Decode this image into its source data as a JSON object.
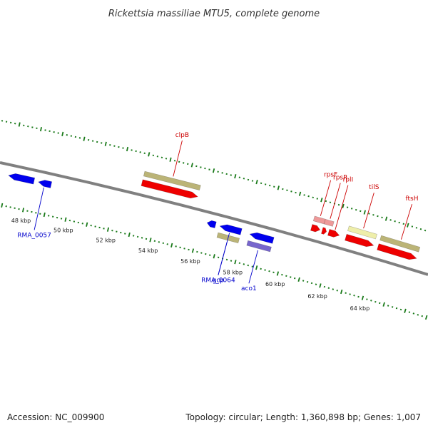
{
  "title": "Rickettsia massiliae MTU5, complete genome",
  "footer": {
    "accession": "Accession: NC_009900",
    "summary": "Topology: circular; Length: 1,360,898 bp; Genes: 1,007"
  },
  "colors": {
    "backbone": "#808080",
    "tick": "#1a7a1a",
    "forward_label": "#cc0000",
    "reverse_label": "#0000cc",
    "gene_red": "#ee0000",
    "gene_blue": "#0000ee",
    "gene_olive": "#bbb477",
    "gene_pink": "#ee9999",
    "gene_yellow": "#eeeeaa",
    "gene_purple": "#7766cc"
  },
  "scale": {
    "kbp_labels": [
      "48 kbp",
      "50 kbp",
      "52 kbp",
      "54 kbp",
      "56 kbp",
      "58 kbp",
      "60 kbp",
      "62 kbp",
      "64 kbp"
    ]
  },
  "genes": [
    {
      "name": "rma-0056",
      "strand": "reverse",
      "start_kbp": 47.0,
      "end_kbp": 48.2,
      "color": "gene_blue",
      "label": ""
    },
    {
      "name": "rma-0057",
      "strand": "reverse",
      "start_kbp": 48.4,
      "end_kbp": 49.0,
      "color": "gene_blue",
      "label": "RMA_0057"
    },
    {
      "name": "clpb-gene",
      "strand": "forward",
      "start_kbp": 53.0,
      "end_kbp": 55.6,
      "color": "gene_olive",
      "label": "clpB",
      "lane": "outer"
    },
    {
      "name": "forward-gene-1",
      "strand": "forward",
      "start_kbp": 53.0,
      "end_kbp": 55.6,
      "color": "gene_red",
      "label": ""
    },
    {
      "name": "rma-0063",
      "strand": "reverse",
      "start_kbp": 56.3,
      "end_kbp": 56.7,
      "color": "gene_blue",
      "label": ""
    },
    {
      "name": "rma-0064",
      "strand": "reverse",
      "start_kbp": 56.9,
      "end_kbp": 57.9,
      "color": "gene_blue",
      "label": "RMA_0064"
    },
    {
      "name": "gcp-gene",
      "strand": "reverse",
      "start_kbp": 56.9,
      "end_kbp": 57.9,
      "color": "gene_olive",
      "label": "gcp",
      "lane": "inner"
    },
    {
      "name": "rma-0066",
      "strand": "reverse",
      "start_kbp": 58.3,
      "end_kbp": 59.4,
      "color": "gene_blue",
      "label": ""
    },
    {
      "name": "aco1-gene",
      "strand": "reverse",
      "start_kbp": 58.3,
      "end_kbp": 59.4,
      "color": "gene_purple",
      "label": "aco1",
      "lane": "inner"
    },
    {
      "name": "rpsf-gene",
      "strand": "forward",
      "start_kbp": 60.9,
      "end_kbp": 61.4,
      "color": "gene_pink",
      "label": "rpsF",
      "lane": "outer"
    },
    {
      "name": "rpsr-gene",
      "strand": "forward",
      "start_kbp": 61.4,
      "end_kbp": 61.8,
      "color": "gene_pink",
      "label": "rpsR",
      "lane": "outer"
    },
    {
      "name": "forward-gene-2",
      "strand": "forward",
      "start_kbp": 60.9,
      "end_kbp": 61.3,
      "color": "gene_red",
      "label": ""
    },
    {
      "name": "forward-gene-3",
      "strand": "forward",
      "start_kbp": 61.4,
      "end_kbp": 61.6,
      "color": "gene_red",
      "label": ""
    },
    {
      "name": "rpli-gene",
      "strand": "forward",
      "start_kbp": 61.7,
      "end_kbp": 62.2,
      "color": "gene_red",
      "label": "rplI"
    },
    {
      "name": "tils-gene",
      "strand": "forward",
      "start_kbp": 62.5,
      "end_kbp": 63.8,
      "color": "gene_yellow",
      "label": "tilS",
      "lane": "outer"
    },
    {
      "name": "forward-gene-4",
      "strand": "forward",
      "start_kbp": 62.5,
      "end_kbp": 63.8,
      "color": "gene_red",
      "label": ""
    },
    {
      "name": "ftsh-gene",
      "strand": "forward",
      "start_kbp": 64.0,
      "end_kbp": 65.8,
      "color": "gene_olive",
      "label": "ftsH",
      "lane": "outer"
    },
    {
      "name": "forward-gene-5",
      "strand": "forward",
      "start_kbp": 64.0,
      "end_kbp": 65.8,
      "color": "gene_red",
      "label": ""
    }
  ]
}
